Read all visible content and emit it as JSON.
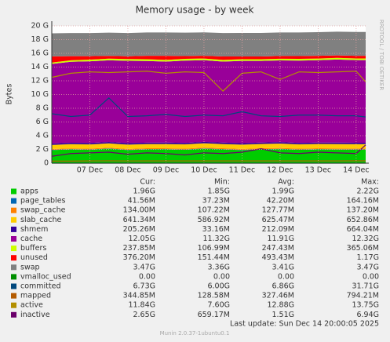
{
  "chart_data": {
    "type": "stacked-area",
    "title": "Memory usage - by week",
    "y_label": "Bytes",
    "side_label": "RRDTOOL / TOBI OETIKER",
    "last_update": "Last update: Sun Dec 14 20:00:05 2025",
    "footer": "Munin 2.0.37-1ubuntu0.1",
    "columns": [
      "Cur:",
      "Min:",
      "Avg:",
      "Max:"
    ],
    "xlim": [
      0,
      8.25
    ],
    "xticks": [
      {
        "value": 1,
        "label": "07 Dec"
      },
      {
        "value": 2,
        "label": "08 Dec"
      },
      {
        "value": 3,
        "label": "09 Dec"
      },
      {
        "value": 4,
        "label": "10 Dec"
      },
      {
        "value": 5,
        "label": "11 Dec"
      },
      {
        "value": 6,
        "label": "12 Dec"
      },
      {
        "value": 7,
        "label": "13 Dec"
      },
      {
        "value": 8,
        "label": "14 Dec"
      }
    ],
    "ylim": [
      0,
      20
    ],
    "yticks": [
      0,
      {
        "value": 2,
        "label": "2 G"
      },
      {
        "value": 4,
        "label": "4 G"
      },
      {
        "value": 6,
        "label": "6 G"
      },
      {
        "value": 8,
        "label": "8 G"
      },
      {
        "value": 10,
        "label": "10 G"
      },
      {
        "value": 12,
        "label": "12 G"
      },
      {
        "value": 14,
        "label": "14 G"
      },
      {
        "value": 16,
        "label": "16 G"
      },
      {
        "value": 18,
        "label": "18 G"
      },
      {
        "value": 20,
        "label": "20 G"
      }
    ],
    "grid": true,
    "x": [
      0,
      0.5,
      1,
      1.5,
      2,
      2.5,
      3,
      3.5,
      4,
      4.5,
      5,
      5.5,
      6,
      6.5,
      7,
      7.5,
      8,
      8.25
    ],
    "series": [
      {
        "name": "apps",
        "color": "#00cc00",
        "stack": true,
        "cur": "1.96G",
        "min": "1.85G",
        "avg": "1.99G",
        "max": "2.22G",
        "values": [
          1.9,
          2.0,
          1.95,
          2.1,
          1.9,
          2.0,
          2.0,
          1.95,
          2.1,
          2.0,
          1.9,
          2.0,
          2.05,
          1.95,
          2.0,
          1.98,
          1.96,
          1.96
        ]
      },
      {
        "name": "page_tables",
        "color": "#0066b3",
        "stack": true,
        "cur": "41.56M",
        "min": "37.23M",
        "avg": "42.20M",
        "max": "164.16M",
        "values": [
          0.04,
          0.04,
          0.04,
          0.04,
          0.04,
          0.04,
          0.04,
          0.04,
          0.04,
          0.04,
          0.04,
          0.04,
          0.04,
          0.04,
          0.04,
          0.04,
          0.04,
          0.04
        ]
      },
      {
        "name": "swap_cache",
        "color": "#ff8000",
        "stack": true,
        "cur": "134.00M",
        "min": "107.22M",
        "avg": "127.77M",
        "max": "137.20M",
        "values": [
          0.12,
          0.12,
          0.12,
          0.12,
          0.13,
          0.13,
          0.13,
          0.13,
          0.13,
          0.13,
          0.13,
          0.13,
          0.13,
          0.13,
          0.13,
          0.13,
          0.13,
          0.13
        ]
      },
      {
        "name": "slab_cache",
        "color": "#ffcc00",
        "stack": true,
        "cur": "641.34M",
        "min": "586.92M",
        "avg": "625.47M",
        "max": "652.86M",
        "values": [
          0.6,
          0.61,
          0.62,
          0.62,
          0.63,
          0.62,
          0.62,
          0.63,
          0.63,
          0.62,
          0.63,
          0.63,
          0.64,
          0.63,
          0.63,
          0.64,
          0.64,
          0.64
        ]
      },
      {
        "name": "shmem",
        "color": "#330099",
        "stack": true,
        "cur": "205.26M",
        "min": "33.16M",
        "avg": "212.09M",
        "max": "664.04M",
        "values": [
          0.2,
          0.2,
          0.21,
          0.2,
          0.22,
          0.2,
          0.21,
          0.2,
          0.2,
          0.21,
          0.2,
          0.2,
          0.21,
          0.2,
          0.2,
          0.21,
          0.2,
          0.2
        ]
      },
      {
        "name": "cache",
        "color": "#990099",
        "stack": true,
        "cur": "12.05G",
        "min": "11.32G",
        "avg": "11.91G",
        "max": "12.32G",
        "values": [
          11.6,
          11.8,
          11.9,
          11.9,
          12.0,
          11.9,
          11.8,
          12.0,
          11.9,
          11.8,
          12.0,
          11.9,
          11.9,
          12.0,
          12.0,
          12.1,
          12.05,
          12.05
        ]
      },
      {
        "name": "buffers",
        "color": "#ccff00",
        "stack": true,
        "cur": "237.85M",
        "min": "106.99M",
        "avg": "247.43M",
        "max": "365.06M",
        "values": [
          0.2,
          0.22,
          0.24,
          0.25,
          0.25,
          0.25,
          0.24,
          0.25,
          0.25,
          0.24,
          0.25,
          0.25,
          0.24,
          0.25,
          0.24,
          0.24,
          0.24,
          0.24
        ]
      },
      {
        "name": "unused",
        "color": "#ff0000",
        "stack": true,
        "cur": "376.20M",
        "min": "151.44M",
        "avg": "493.43M",
        "max": "1.17G",
        "values": [
          0.9,
          0.6,
          0.5,
          0.4,
          0.4,
          0.5,
          0.6,
          0.4,
          0.4,
          0.5,
          0.4,
          0.4,
          0.4,
          0.4,
          0.4,
          0.36,
          0.38,
          0.38
        ]
      },
      {
        "name": "swap",
        "color": "#808080",
        "stack": true,
        "cur": "3.47G",
        "min": "3.36G",
        "avg": "3.41G",
        "max": "3.47G",
        "values": [
          3.36,
          3.37,
          3.38,
          3.38,
          3.39,
          3.4,
          3.4,
          3.41,
          3.41,
          3.42,
          3.42,
          3.42,
          3.44,
          3.45,
          3.45,
          3.46,
          3.47,
          3.47
        ]
      },
      {
        "name": "vmalloc_used",
        "color": "#008f00",
        "stack": false,
        "cur": "0.00",
        "min": "0.00",
        "avg": "0.00",
        "max": "0.00",
        "values": [
          0,
          0,
          0,
          0,
          0,
          0,
          0,
          0,
          0,
          0,
          0,
          0,
          0,
          0,
          0,
          0,
          0,
          0
        ]
      },
      {
        "name": "committed",
        "color": "#00487d",
        "stack": false,
        "cur": "6.73G",
        "min": "6.00G",
        "avg": "6.86G",
        "max": "31.71G",
        "values": [
          7.2,
          6.8,
          7.0,
          9.5,
          6.8,
          6.9,
          7.1,
          6.8,
          7.0,
          6.9,
          7.5,
          6.9,
          6.8,
          7.0,
          7.0,
          6.9,
          6.9,
          6.73
        ]
      },
      {
        "name": "mapped",
        "color": "#b35a00",
        "stack": false,
        "cur": "344.85M",
        "min": "128.58M",
        "avg": "327.46M",
        "max": "794.21M",
        "values": [
          0.3,
          0.3,
          0.33,
          0.34,
          0.32,
          0.33,
          0.33,
          0.33,
          0.33,
          0.33,
          0.33,
          0.33,
          0.33,
          0.33,
          0.33,
          0.33,
          0.34,
          0.34
        ]
      },
      {
        "name": "active",
        "color": "#b38f00",
        "stack": false,
        "cur": "11.84G",
        "min": "7.60G",
        "avg": "12.88G",
        "max": "13.75G",
        "values": [
          12.5,
          13.1,
          13.3,
          13.2,
          13.3,
          13.4,
          13.1,
          13.3,
          13.2,
          10.5,
          13.1,
          13.3,
          12.2,
          13.3,
          13.2,
          13.3,
          13.4,
          11.84
        ]
      },
      {
        "name": "inactive",
        "color": "#6b006b",
        "stack": false,
        "cur": "2.65G",
        "min": "659.17M",
        "avg": "1.51G",
        "max": "6.94G",
        "values": [
          1.0,
          1.4,
          1.5,
          1.6,
          1.3,
          1.5,
          1.4,
          1.2,
          1.5,
          1.4,
          1.6,
          2.1,
          1.5,
          1.4,
          1.6,
          1.5,
          1.4,
          2.65
        ]
      }
    ]
  }
}
